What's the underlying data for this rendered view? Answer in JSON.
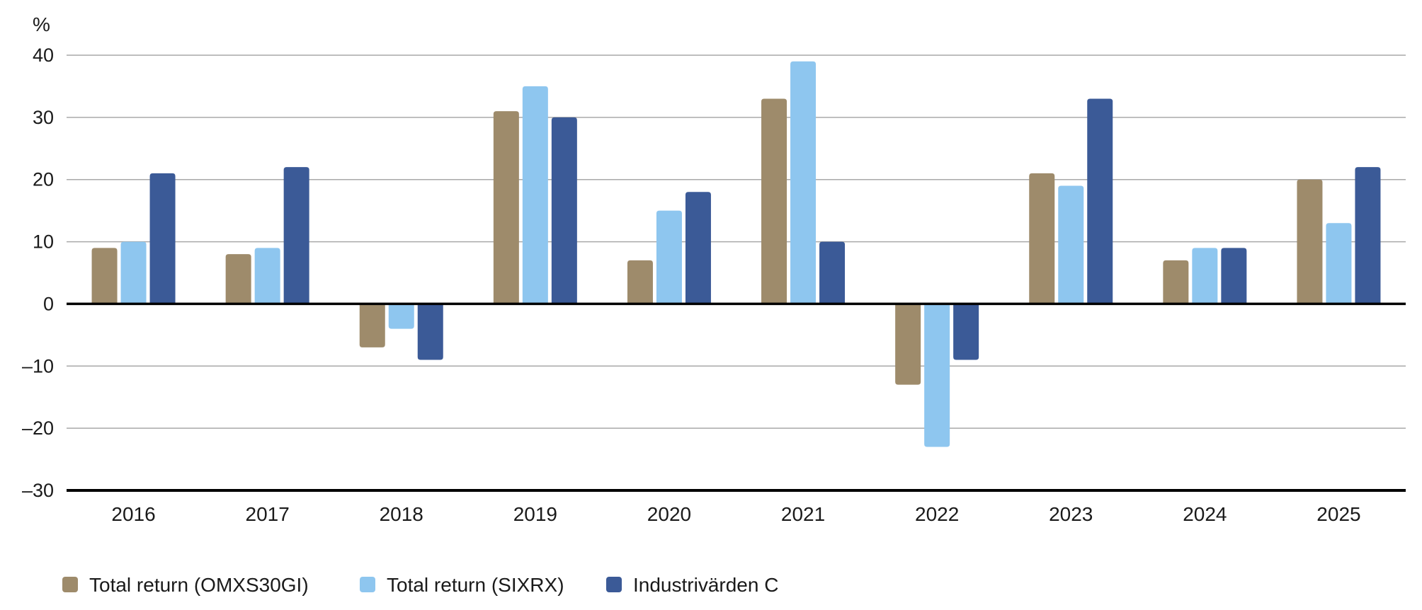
{
  "chart_data": {
    "type": "bar",
    "unit_label": "%",
    "categories": [
      "2016",
      "2017",
      "2018",
      "2019",
      "2020",
      "2021",
      "2022",
      "2023",
      "2024",
      "2025"
    ],
    "series": [
      {
        "name": "Total return (OMXS30GI)",
        "color": "#9e8b6b",
        "values": [
          9,
          8,
          -7,
          31,
          7,
          33,
          -13,
          21,
          7,
          20
        ]
      },
      {
        "name": "Total return (SIXRX)",
        "color": "#8ec6ef",
        "values": [
          10,
          9,
          -4,
          35,
          15,
          39,
          -23,
          19,
          9,
          13
        ]
      },
      {
        "name": "Industrivärden C",
        "color": "#3b5a97",
        "values": [
          21,
          22,
          -9,
          30,
          18,
          10,
          -9,
          33,
          9,
          22
        ]
      }
    ],
    "yticks": [
      40,
      30,
      20,
      10,
      0,
      -10,
      -20,
      -30
    ],
    "ytick_labels": [
      "40",
      "30",
      "20",
      "10",
      "0",
      "–10",
      "–20",
      "–30"
    ],
    "ylim": [
      -30,
      40
    ],
    "grid": true,
    "legend_position": "bottom-left"
  }
}
